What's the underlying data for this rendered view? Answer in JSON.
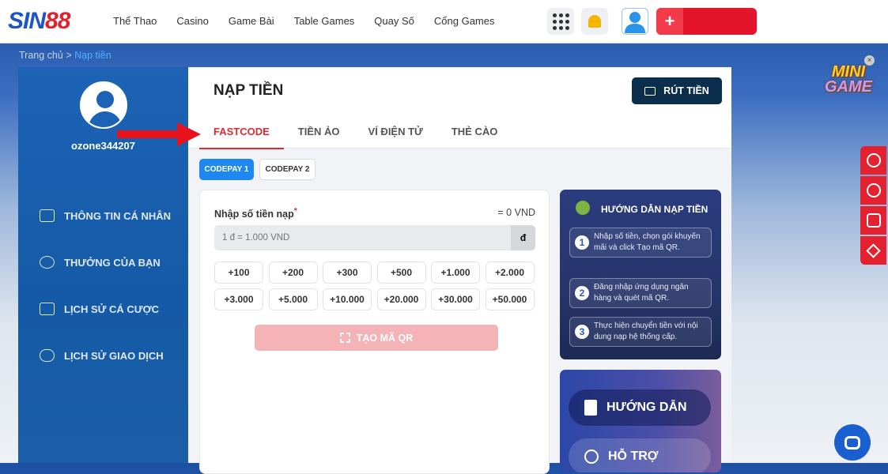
{
  "header": {
    "logo": {
      "part1": "SIN",
      "part2": "88"
    },
    "nav": [
      "Thể Thao",
      "Casino",
      "Game Bài",
      "Table Games",
      "Quay Số",
      "Cổng Games"
    ],
    "deposit_icon": "+"
  },
  "breadcrumb": {
    "home": "Trang chủ",
    "separator": ">",
    "current": "Nạp tiền"
  },
  "sidebar": {
    "username": "ozone344207",
    "items": [
      {
        "label": "THÔNG TIN CÁ NHÂN",
        "icon": "id-card-icon"
      },
      {
        "label": "THƯỞNG CỦA BẠN",
        "icon": "gift-hand-icon"
      },
      {
        "label": "LỊCH SỬ CÁ CƯỢC",
        "icon": "ticket-icon"
      },
      {
        "label": "LỊCH SỬ GIAO DỊCH",
        "icon": "money-chart-icon"
      }
    ]
  },
  "main": {
    "title": "NẠP TIỀN",
    "withdraw_label": "RÚT TIỀN",
    "tabs": [
      "FASTCODE",
      "TIỀN ẢO",
      "VÍ ĐIỆN TỬ",
      "THẺ CÀO"
    ],
    "active_tab": "FASTCODE",
    "codepay": [
      "CODEPAY 1",
      "CODEPAY 2"
    ],
    "form": {
      "label": "Nhập số tiền nạp",
      "required": "*",
      "converted": "= 0 VND",
      "placeholder": "1 đ = 1.000 VND",
      "unit": "đ",
      "amounts": [
        "+100",
        "+200",
        "+300",
        "+500",
        "+1.000",
        "+2.000",
        "+3.000",
        "+5.000",
        "+10.000",
        "+20.000",
        "+30.000",
        "+50.000"
      ],
      "submit": "TẠO MÃ QR"
    },
    "guide": {
      "title": "HƯỚNG DẪN NẠP TIỀN",
      "steps": [
        {
          "n": "1",
          "text": "Nhập số tiền, chọn gói khuyến mãi và click Tạo mã QR."
        },
        {
          "n": "2",
          "text": "Đăng nhập ứng dụng ngân hàng và quét mã QR."
        },
        {
          "n": "3",
          "text": "Thực hiện chuyển tiền với nội dung nạp hệ thống cấp."
        }
      ]
    },
    "help": {
      "guide_label": "HƯỚNG DẪN",
      "support_label": "HỖ TRỢ"
    }
  },
  "minigame": {
    "line1": "MINI",
    "line2": "GAME",
    "close": "×"
  },
  "colors": {
    "brand_red": "#e4142a",
    "brand_blue": "#1d55c4",
    "accent_tab": "#e02a30",
    "codepay_active": "#1e88f0",
    "withdraw_bg": "#0c2e4d"
  }
}
